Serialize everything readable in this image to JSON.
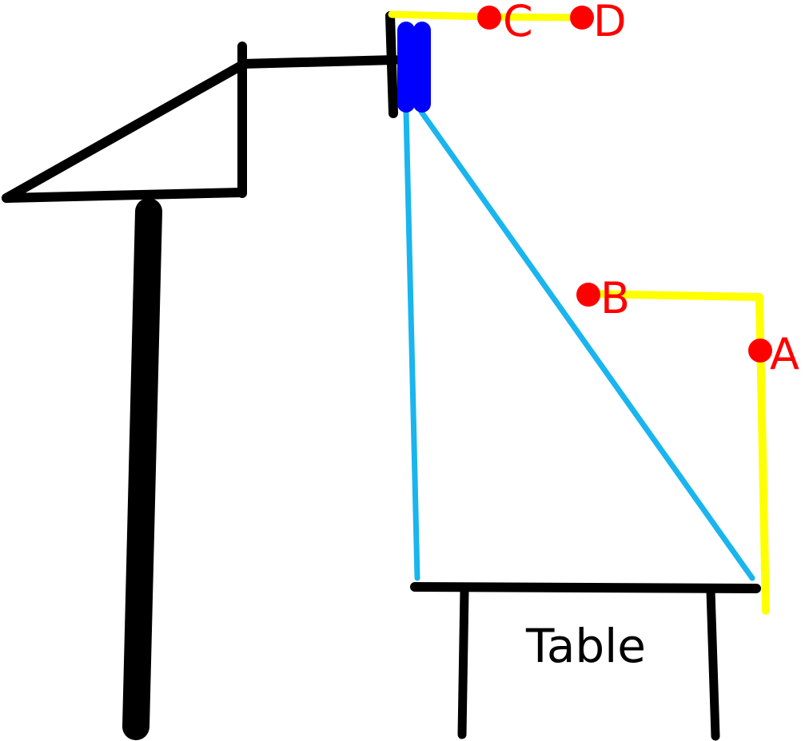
{
  "colors": {
    "structure": "#000000",
    "beam_light": "#1ab5ee",
    "path": "#ffff00",
    "point": "#ff0000",
    "device": "#0000ff",
    "background": "#ffffff"
  },
  "points": {
    "a": "A",
    "b": "B",
    "c": "C",
    "d": "D"
  },
  "table": {
    "label": "Table"
  }
}
